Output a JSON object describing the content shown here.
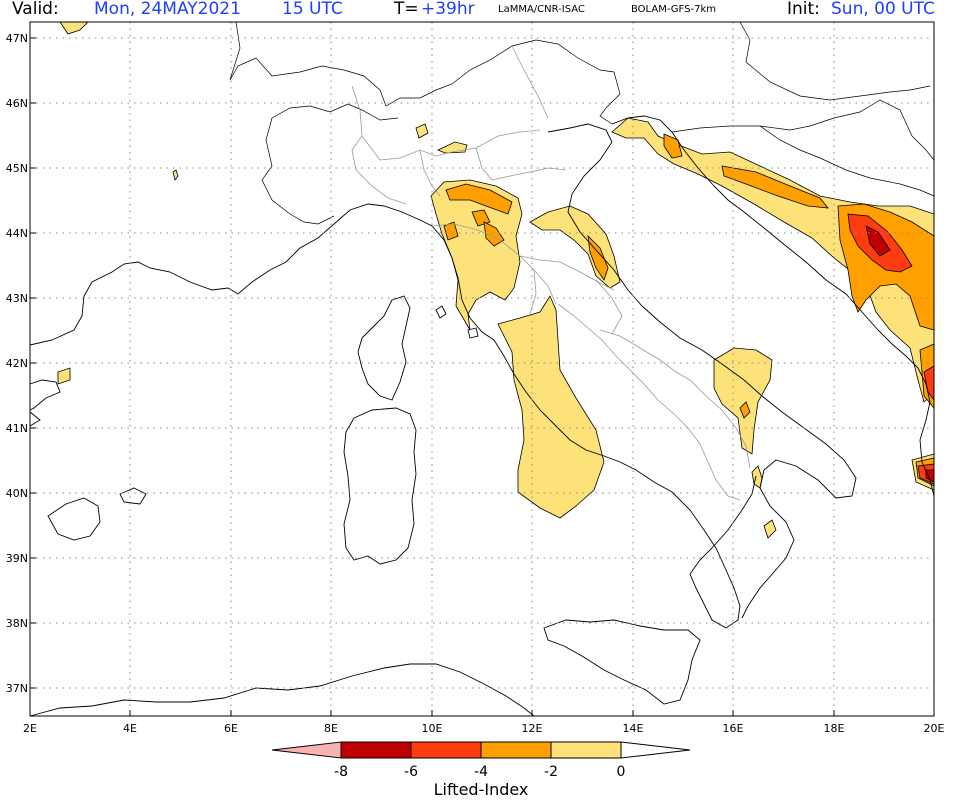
{
  "header": {
    "valid_label": "Valid:",
    "valid_date": "Mon, 24MAY2021",
    "valid_time": "15 UTC",
    "t_label": "T=",
    "t_value": "+39hr",
    "source": "LaMMA/CNR-ISAC",
    "model": "BOLAM-GFS-7km",
    "init_label": "Init:",
    "init_value": "Sun, 00 UTC"
  },
  "axes": {
    "latitudes": [
      "47N",
      "46N",
      "45N",
      "44N",
      "43N",
      "42N",
      "41N",
      "40N",
      "39N",
      "38N",
      "37N"
    ],
    "longitudes": [
      "2E",
      "4E",
      "6E",
      "8E",
      "10E",
      "12E",
      "14E",
      "16E",
      "18E",
      "20E"
    ]
  },
  "colorbar": {
    "title": "Lifted-Index",
    "ticks": [
      "-8",
      "-6",
      "-4",
      "-2",
      "0"
    ],
    "colors": [
      "#f7b2b2",
      "#c00000",
      "#ff3b10",
      "#ffa000",
      "#fde27a",
      "#ffffff"
    ]
  },
  "fields": {
    "colors": {
      "li_0_-2": "#fde27a",
      "li_-2_-4": "#ffa000",
      "li_-4_-6": "#ff3b10",
      "li_-6_-8": "#c00000"
    }
  }
}
